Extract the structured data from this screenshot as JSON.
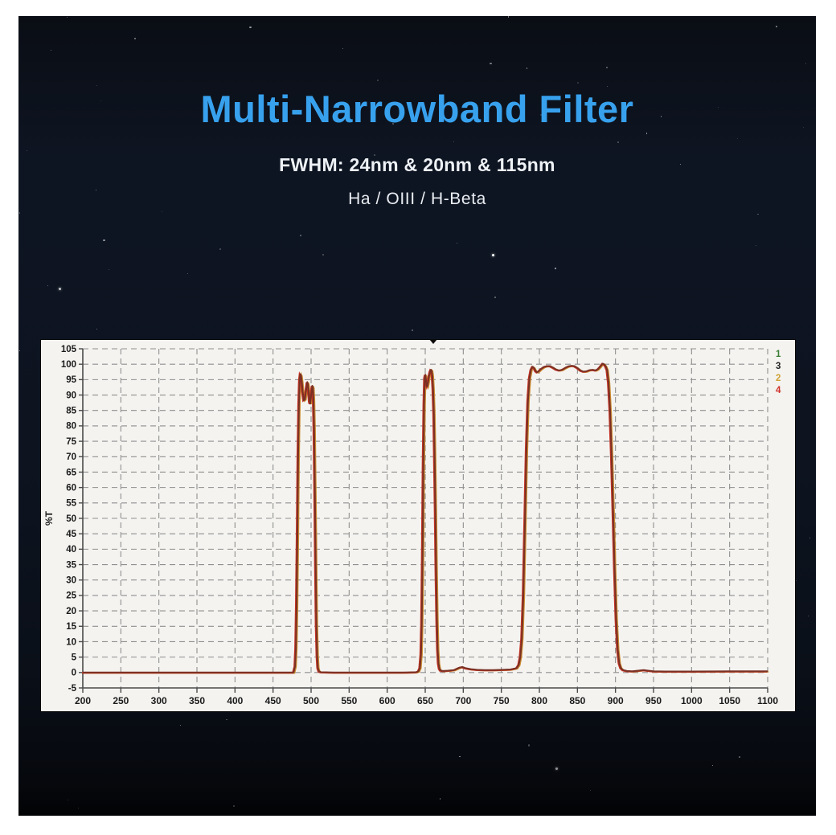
{
  "header": {
    "title": "Multi-Narrowband Filter",
    "fwhm_line": "FWHM:  24nm & 20nm & 115nm",
    "bands_line": "Ha / OIII / H-Beta"
  },
  "colors": {
    "title_accent": "#38a1ee",
    "subtitle_text": "#eef2f6",
    "panel_background": "#f4f3f0",
    "grid": "#8f8f8f",
    "axis": "#4a4a4a",
    "tick_label": "#1a1a1a",
    "curve_main": "#7a3124",
    "curve_red_fringe": "#c63325",
    "curve_orange_fringe": "#cc8a2e"
  },
  "chart_data": {
    "type": "line",
    "title": "",
    "xlabel": "",
    "ylabel": "%T",
    "xlim": [
      200,
      1100
    ],
    "ylim": [
      -5,
      105
    ],
    "xtick_step": 50,
    "ytick_step": 5,
    "grid": "dashed",
    "legend_position": "top-right-outside",
    "legend": [
      {
        "label": "1",
        "color": "#3a7d33"
      },
      {
        "label": "3",
        "color": "#222222"
      },
      {
        "label": "2",
        "color": "#cfa02f"
      },
      {
        "label": "4",
        "color": "#d03028"
      }
    ],
    "note": "four numbered traces overlap as one visible transmission curve",
    "curve": {
      "name": "transmission",
      "points": [
        [
          200,
          0
        ],
        [
          250,
          0
        ],
        [
          300,
          0
        ],
        [
          350,
          0
        ],
        [
          400,
          0
        ],
        [
          440,
          0
        ],
        [
          470,
          0
        ],
        [
          477,
          0
        ],
        [
          479,
          2
        ],
        [
          480,
          8
        ],
        [
          481,
          22
        ],
        [
          482,
          45
        ],
        [
          483,
          70
        ],
        [
          484,
          87
        ],
        [
          485,
          95
        ],
        [
          485.8,
          96.8
        ],
        [
          486.8,
          96.3
        ],
        [
          488,
          94
        ],
        [
          489,
          91
        ],
        [
          490.5,
          88.3
        ],
        [
          492,
          88.6
        ],
        [
          493.5,
          91.5
        ],
        [
          495,
          94.2
        ],
        [
          496,
          93.4
        ],
        [
          497,
          90.5
        ],
        [
          498,
          87.8
        ],
        [
          498.8,
          87.2
        ],
        [
          499.6,
          88.6
        ],
        [
          500.6,
          91.2
        ],
        [
          501.6,
          93
        ],
        [
          502.4,
          92.4
        ],
        [
          503.2,
          88.5
        ],
        [
          504,
          79
        ],
        [
          505,
          60
        ],
        [
          506,
          36
        ],
        [
          507,
          16
        ],
        [
          508,
          5.5
        ],
        [
          509,
          1.5
        ],
        [
          510.5,
          0.4
        ],
        [
          513,
          0.1
        ],
        [
          530,
          0
        ],
        [
          560,
          0
        ],
        [
          590,
          0
        ],
        [
          620,
          0
        ],
        [
          638,
          0.1
        ],
        [
          641,
          0.4
        ],
        [
          643,
          1.5
        ],
        [
          644.5,
          6
        ],
        [
          645.5,
          16
        ],
        [
          646.5,
          38
        ],
        [
          647.5,
          66
        ],
        [
          648.5,
          87
        ],
        [
          649.4,
          95.5
        ],
        [
          650.2,
          96.6
        ],
        [
          651,
          95
        ],
        [
          651.8,
          93.2
        ],
        [
          652.6,
          92.7
        ],
        [
          653.6,
          93.8
        ],
        [
          655,
          96
        ],
        [
          656.4,
          97.6
        ],
        [
          657.4,
          98.2
        ],
        [
          658.4,
          97.9
        ],
        [
          659.4,
          96.2
        ],
        [
          660.4,
          92
        ],
        [
          661.4,
          84
        ],
        [
          662.4,
          70
        ],
        [
          663.4,
          52
        ],
        [
          664.4,
          33
        ],
        [
          665.4,
          17
        ],
        [
          666.4,
          7.5
        ],
        [
          667.4,
          3
        ],
        [
          668.6,
          1.3
        ],
        [
          670,
          0.7
        ],
        [
          673,
          0.5
        ],
        [
          680,
          0.6
        ],
        [
          688,
          0.8
        ],
        [
          695,
          1.6
        ],
        [
          699,
          1.8
        ],
        [
          703,
          1.4
        ],
        [
          710,
          1.1
        ],
        [
          718,
          0.9
        ],
        [
          728,
          0.8
        ],
        [
          740,
          0.8
        ],
        [
          752,
          0.9
        ],
        [
          762,
          1
        ],
        [
          770,
          1.4
        ],
        [
          773,
          2.5
        ],
        [
          775,
          5
        ],
        [
          777,
          11
        ],
        [
          779,
          25
        ],
        [
          781,
          48
        ],
        [
          783,
          72
        ],
        [
          785,
          88
        ],
        [
          787,
          95.5
        ],
        [
          789,
          98.2
        ],
        [
          791,
          99.2
        ],
        [
          793,
          98.8
        ],
        [
          795,
          97.8
        ],
        [
          797,
          97.4
        ],
        [
          799,
          97.7
        ],
        [
          802,
          98.4
        ],
        [
          806,
          99.1
        ],
        [
          810,
          99.4
        ],
        [
          814,
          99.4
        ],
        [
          818,
          98.9
        ],
        [
          822,
          98.3
        ],
        [
          826,
          98
        ],
        [
          830,
          98.2
        ],
        [
          834,
          98.8
        ],
        [
          838,
          99.3
        ],
        [
          842,
          99.5
        ],
        [
          846,
          99.4
        ],
        [
          850,
          98.8
        ],
        [
          854,
          98
        ],
        [
          858,
          97.6
        ],
        [
          862,
          97.7
        ],
        [
          866,
          98.1
        ],
        [
          870,
          98.2
        ],
        [
          874,
          98
        ],
        [
          877,
          98.4
        ],
        [
          880,
          99.2
        ],
        [
          883,
          100.2
        ],
        [
          885,
          100
        ],
        [
          887,
          99.4
        ],
        [
          889,
          98.2
        ],
        [
          891,
          94
        ],
        [
          893,
          85
        ],
        [
          895,
          70
        ],
        [
          897,
          52
        ],
        [
          899,
          33
        ],
        [
          901,
          17
        ],
        [
          903,
          7.5
        ],
        [
          905,
          3
        ],
        [
          907,
          1.5
        ],
        [
          910,
          0.8
        ],
        [
          915,
          0.5
        ],
        [
          922,
          0.4
        ],
        [
          930,
          0.6
        ],
        [
          937,
          0.8
        ],
        [
          943,
          0.6
        ],
        [
          950,
          0.4
        ],
        [
          965,
          0.35
        ],
        [
          1000,
          0.35
        ],
        [
          1050,
          0.4
        ],
        [
          1100,
          0.4
        ]
      ]
    }
  }
}
